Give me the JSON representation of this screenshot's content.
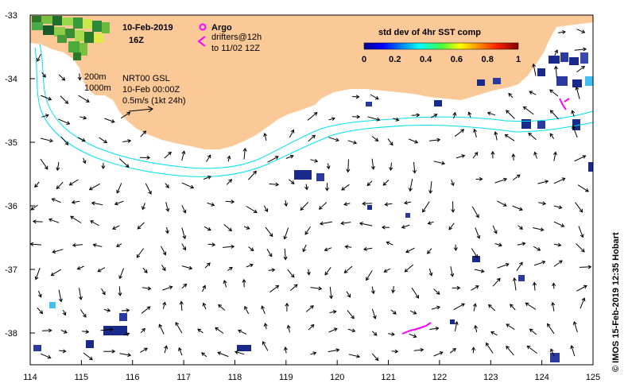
{
  "title": {
    "date": "10-Feb-2019",
    "hour": "16Z"
  },
  "legend": {
    "argo_label": "Argo",
    "drifters_line1": "drifters@12h",
    "drifters_line2": "to 11/02 12Z",
    "argo_color": "#ff00ff",
    "drifter_color": "#ff00ff"
  },
  "colorbar": {
    "title": "std dev of 4hr SST comp",
    "ticks": [
      "0",
      "0.2",
      "0.4",
      "0.6",
      "0.8",
      "1"
    ]
  },
  "contours": {
    "label_200": "200m",
    "label_1000": "1000m",
    "color": "#00e0f0"
  },
  "product": {
    "line1": "NRT00 GSL",
    "line2": "10-Feb 00:00Z",
    "line3": "0.5m/s (1kt 24h)"
  },
  "credit": "© IMOS 15-Feb-2019 12:35 Hobart",
  "colors": {
    "land": "#fbc898",
    "ocean": "#ffffff",
    "arrows": "#000000"
  },
  "axes": {
    "x_ticks": [
      "114",
      "115",
      "116",
      "117",
      "118",
      "119",
      "120",
      "121",
      "122",
      "123",
      "124",
      "125"
    ],
    "y_ticks": [
      "-33",
      "-34",
      "-35",
      "-36",
      "-37",
      "-38"
    ],
    "xlim": [
      114,
      125
    ],
    "ylim": [
      -38.5,
      -33
    ]
  }
}
